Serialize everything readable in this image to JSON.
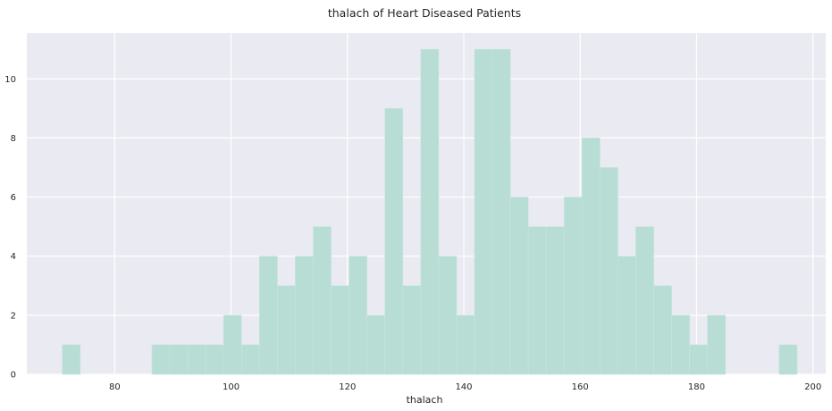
{
  "chart_data": {
    "type": "bar",
    "title": "thalach of Heart Diseased Patients",
    "xlabel": "thalach",
    "ylabel": "",
    "xlim": [
      64.9,
      202.2
    ],
    "ylim": [
      0,
      11.55
    ],
    "xticks": [
      80,
      100,
      120,
      140,
      160,
      180,
      200
    ],
    "yticks": [
      0,
      2,
      4,
      6,
      8,
      10
    ],
    "bin_width": 3.08,
    "bin_start": 71,
    "counts": [
      1,
      0,
      0,
      0,
      0,
      1,
      1,
      1,
      1,
      2,
      1,
      4,
      3,
      4,
      5,
      3,
      4,
      2,
      9,
      3,
      11,
      4,
      2,
      11,
      11,
      6,
      5,
      5,
      6,
      8,
      7,
      4,
      5,
      3,
      2,
      1,
      2,
      0,
      0,
      0,
      1
    ],
    "grid": true,
    "legend": "none",
    "colors": {
      "background": "#eaeaf2",
      "bar": "#b7ddd4",
      "grid": "#ffffff",
      "text": "#262626"
    }
  }
}
